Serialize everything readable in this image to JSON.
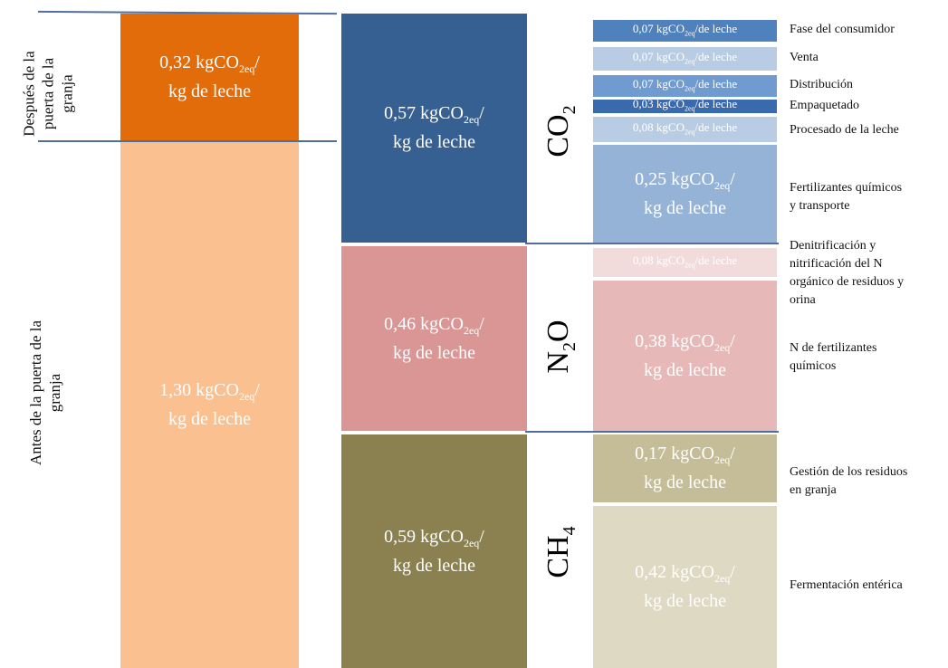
{
  "stage_labels": {
    "after_line1": "Después de la",
    "after_line2": "puerta de la",
    "after_line3": "granja",
    "before_line1": "Antes de la puerta de la",
    "before_line2": "granja"
  },
  "unit": {
    "prefix": "kgCO",
    "sub": "2eq",
    "per_kg_leche": "/ kg de leche",
    "slash": "/",
    "kg_leche": "kg de leche",
    "de_leche": "/de leche"
  },
  "gases": {
    "co2": {
      "base": "CO",
      "sub": "2"
    },
    "n2o": {
      "base": "N",
      "sub": "2",
      "tail": "O"
    },
    "ch4": {
      "base": "CH",
      "sub": "4"
    }
  },
  "colors": {
    "after_farm": "#e36c0a",
    "before_farm": "#fac090",
    "co2": "#376092",
    "n2o": "#d99694",
    "ch4": "#8b8050",
    "fase_consumidor": "#4f81bd",
    "venta": "#b8cce4",
    "distribucion": "#6f9bd1",
    "empaquetado": "#3a6aae",
    "procesado": "#b8cce4",
    "fertilizantes_transporte": "#95b3d7",
    "denitrificacion": "#f2dcdb",
    "n_fertilizantes": "#e6b9b8",
    "gestion_residuos": "#c4bd97",
    "fermentacion": "#ddd9c3"
  },
  "chart_data": {
    "type": "stacked-bar",
    "unit": "kgCO2eq/kg de leche",
    "columns": [
      {
        "key": "stage",
        "segments": [
          {
            "id": "after",
            "name_lines": [
              "Después de la",
              "puerta de la",
              "granja"
            ],
            "value": 0.32,
            "label": "0,32"
          },
          {
            "id": "before",
            "name_lines": [
              "Antes de la puerta de la",
              "granja"
            ],
            "value": 1.3,
            "label": "1,30"
          }
        ]
      },
      {
        "key": "gas",
        "segments": [
          {
            "id": "co2",
            "name": "CO2",
            "value": 0.57,
            "label": "0,57"
          },
          {
            "id": "n2o",
            "name": "N2O",
            "value": 0.46,
            "label": "0,46"
          },
          {
            "id": "ch4",
            "name": "CH4",
            "value": 0.59,
            "label": "0,59"
          }
        ]
      },
      {
        "key": "source",
        "segments": [
          {
            "id": "fase_consumidor",
            "category": "Fase del consumidor",
            "value": 0.07,
            "label": "0,07"
          },
          {
            "id": "venta",
            "category": "Venta",
            "value": 0.07,
            "label": "0,07"
          },
          {
            "id": "distribucion",
            "category": "Distribución",
            "value": 0.07,
            "label": "0,07"
          },
          {
            "id": "empaquetado",
            "category": "Empaquetado",
            "value": 0.03,
            "label": "0,03"
          },
          {
            "id": "procesado",
            "category": "Procesado de la leche",
            "value": 0.08,
            "label": "0,08"
          },
          {
            "id": "fertilizantes_transporte",
            "category_lines": [
              "Fertilizantes químicos",
              "y transporte"
            ],
            "value": 0.25,
            "label": "0,25"
          },
          {
            "id": "denitrificacion",
            "category_lines": [
              "Denitrificación y",
              "nitrificación del N",
              "orgánico de residuos y",
              "orina"
            ],
            "value": 0.08,
            "label": "0,08"
          },
          {
            "id": "n_fertilizantes",
            "category_lines": [
              "N de fertilizantes",
              "químicos"
            ],
            "value": 0.38,
            "label": "0,38"
          },
          {
            "id": "gestion_residuos",
            "category_lines": [
              "Gestión de los residuos",
              "en granja"
            ],
            "value": 0.17,
            "label": "0,17"
          },
          {
            "id": "fermentacion",
            "category": "Fermentación entérica",
            "value": 0.42,
            "label": "0,42"
          }
        ]
      }
    ]
  }
}
